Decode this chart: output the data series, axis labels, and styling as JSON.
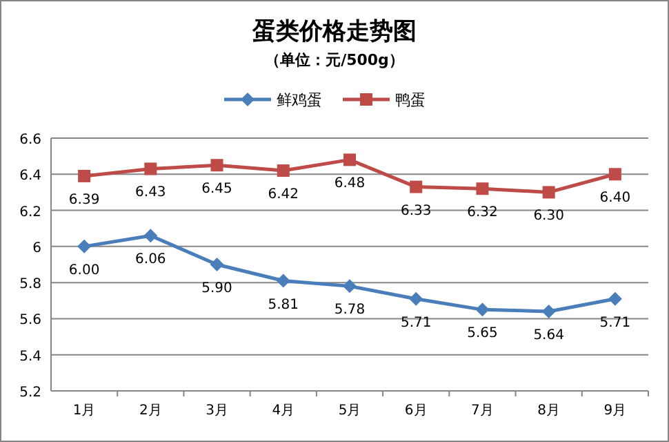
{
  "chart_data": {
    "type": "line",
    "title": "蛋类价格走势图",
    "subtitle": "（单位：元/500g）",
    "categories": [
      "1月",
      "2月",
      "3月",
      "4月",
      "5月",
      "6月",
      "7月",
      "8月",
      "9月"
    ],
    "series": [
      {
        "name": "鲜鸡蛋",
        "color": "#4a7ebb",
        "marker": "diamond",
        "values": [
          6.0,
          6.06,
          5.9,
          5.81,
          5.78,
          5.71,
          5.65,
          5.64,
          5.71
        ],
        "value_labels": [
          "6.00",
          "6.06",
          "5.90",
          "5.81",
          "5.78",
          "5.71",
          "5.65",
          "5.64",
          "5.71"
        ]
      },
      {
        "name": "鸭蛋",
        "color": "#be4b48",
        "marker": "square",
        "values": [
          6.39,
          6.43,
          6.45,
          6.42,
          6.48,
          6.33,
          6.32,
          6.3,
          6.4
        ],
        "value_labels": [
          "6.39",
          "6.43",
          "6.45",
          "6.42",
          "6.48",
          "6.33",
          "6.32",
          "6.30",
          "6.40"
        ]
      }
    ],
    "ylim": [
      5.2,
      6.6
    ],
    "yticks": [
      5.2,
      5.4,
      5.6,
      5.8,
      6,
      6.2,
      6.4,
      6.6
    ],
    "grid": "y",
    "legend": "top",
    "line_style": "solid"
  }
}
